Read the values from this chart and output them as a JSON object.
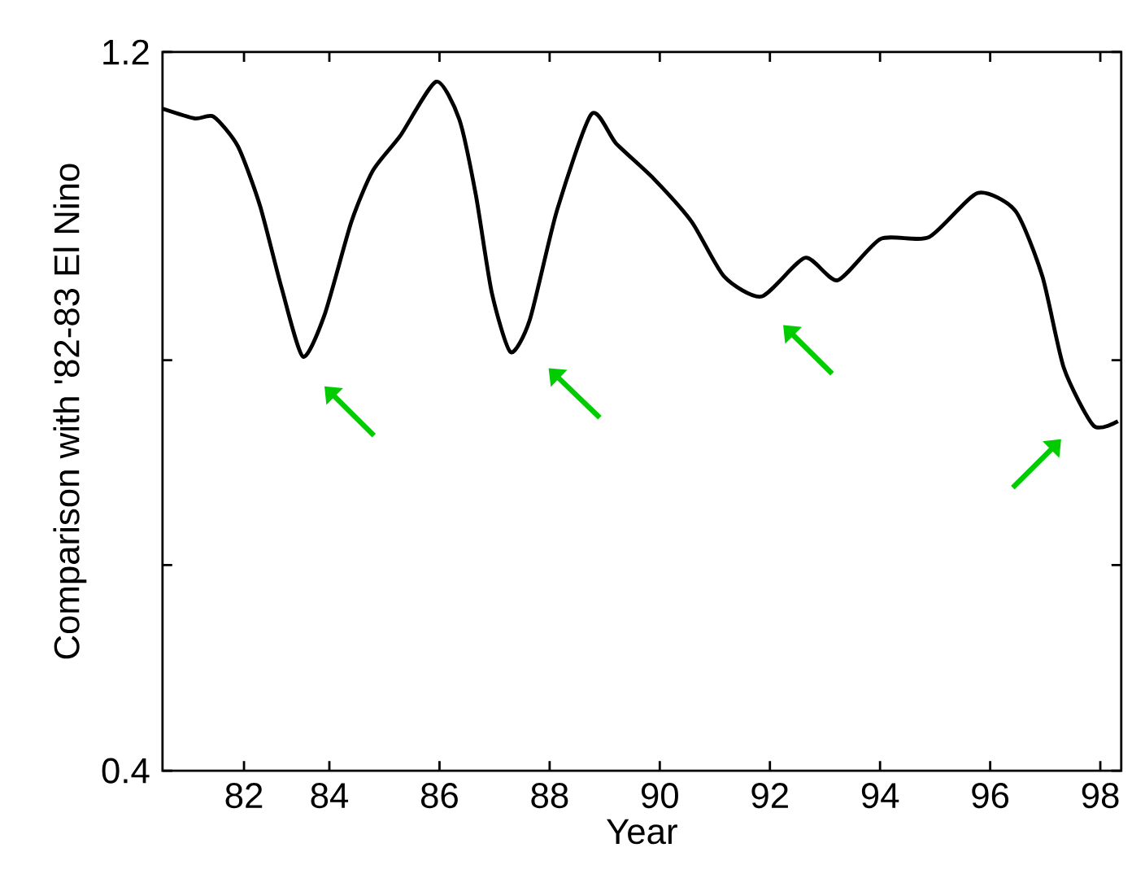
{
  "chart_data": {
    "type": "line",
    "xlabel": "Year",
    "ylabel": "Comparison with '82-83 El Nino",
    "x": [
      80.97,
      81.56,
      81.9,
      82.34,
      82.74,
      83.13,
      83.52,
      83.91,
      84.4,
      84.79,
      85.29,
      85.94,
      86.36,
      86.66,
      86.95,
      87.29,
      87.64,
      88.13,
      88.76,
      89.21,
      89.89,
      90.58,
      91.17,
      91.85,
      92.64,
      93.23,
      94.01,
      94.89,
      95.77,
      96.46,
      96.95,
      97.34,
      97.88,
      98.32
    ],
    "series": [
      {
        "color": "#000000",
        "values": [
          1.137,
          1.126,
          1.128,
          1.095,
          1.029,
          0.938,
          0.861,
          0.907,
          1.011,
          1.068,
          1.107,
          1.167,
          1.125,
          1.041,
          0.932,
          0.866,
          0.902,
          1.023,
          1.131,
          1.098,
          1.059,
          1.011,
          0.95,
          0.928,
          0.971,
          0.946,
          0.992,
          0.994,
          1.043,
          1.023,
          0.95,
          0.848,
          0.784,
          0.789
        ]
      }
    ],
    "xlim": [
      80.97,
      98.38
    ],
    "ylim": [
      0.4,
      1.2
    ],
    "xticks": [
      {
        "value": 82.45,
        "label": "82"
      },
      84,
      86,
      88,
      90,
      92,
      94,
      96,
      98
    ],
    "yticks": [
      0.4,
      {
        "value": 0.629,
        "label": null
      },
      {
        "value": 0.857,
        "label": null
      },
      1.2
    ],
    "marker": "none",
    "line_style": "solid"
  }
}
